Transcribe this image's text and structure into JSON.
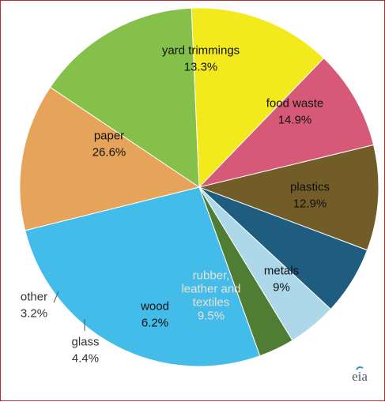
{
  "chart_data": {
    "type": "pie",
    "slices": [
      {
        "label": "yard trimmings",
        "value": 13.3,
        "value_text": "13.3%",
        "color": "#e6a35a",
        "text_color": "#111111"
      },
      {
        "label": "food waste",
        "value": 14.9,
        "value_text": "14.9%",
        "color": "#84c04a",
        "text_color": "#111111"
      },
      {
        "label": "plastics",
        "value": 12.9,
        "value_text": "12.9%",
        "color": "#f2ea1c",
        "text_color": "#111111"
      },
      {
        "label": "metals",
        "value": 9,
        "value_text": "9%",
        "color": "#d65a77",
        "text_color": "#111111"
      },
      {
        "label": "rubber, leather and textiles",
        "value": 9.5,
        "value_text": "9.5%",
        "color": "#725d29",
        "text_color": "#e8e2d0"
      },
      {
        "label": "wood",
        "value": 6.2,
        "value_text": "6.2%",
        "color": "#1e5d80",
        "text_color": "#111111"
      },
      {
        "label": "glass",
        "value": 4.4,
        "value_text": "4.4%",
        "color": "#acd8ea",
        "text_color": "#333333"
      },
      {
        "label": "other",
        "value": 3.2,
        "value_text": "3.2%",
        "color": "#4f7d33",
        "text_color": "#333333"
      },
      {
        "label": "paper",
        "value": 26.6,
        "value_text": "26.6%",
        "color": "#44bcea",
        "text_color": "#111111"
      }
    ],
    "legend": "none",
    "logo_text": "eia"
  }
}
